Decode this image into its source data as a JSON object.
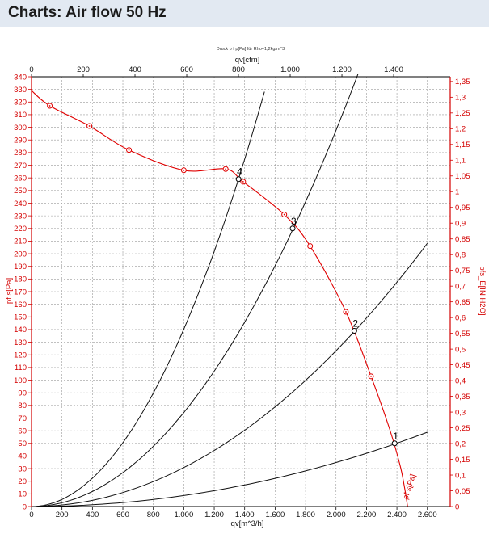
{
  "header": {
    "title": "Charts: Air flow 50 Hz"
  },
  "chart_data": {
    "type": "line",
    "title": "Druck p f ρ[Pa] für Rho=1,2kg/m^3",
    "xlabel": "qv[m^3/h]",
    "x2label": "qv[cfm]",
    "ylabel": "pf s[Pa]",
    "y2label": "pfs_E[IN H2O]",
    "xlim": [
      0,
      2750
    ],
    "ylim": [
      0,
      340
    ],
    "x2lim": [
      0,
      1618.6
    ],
    "y2lim": [
      0,
      1.365
    ],
    "x_ticks": [
      0,
      200,
      400,
      600,
      800,
      1000,
      1200,
      1400,
      1600,
      1800,
      2000,
      2200,
      2400,
      2600
    ],
    "x_tick_labels": [
      "0",
      "200",
      "400",
      "600",
      "800",
      "1.000",
      "1.200",
      "1.400",
      "1.600",
      "1.800",
      "2.000",
      "2.200",
      "2.400",
      "2.600"
    ],
    "x2_ticks": [
      0,
      200,
      400,
      600,
      800,
      1000,
      1200,
      1400
    ],
    "x2_tick_labels": [
      "0",
      "200",
      "400",
      "600",
      "800",
      "1.000",
      "1.200",
      "1.400"
    ],
    "y_ticks": [
      0,
      10,
      20,
      30,
      40,
      50,
      60,
      70,
      80,
      90,
      100,
      110,
      120,
      130,
      140,
      150,
      160,
      170,
      180,
      190,
      200,
      210,
      220,
      230,
      240,
      250,
      260,
      270,
      280,
      290,
      300,
      310,
      320,
      330,
      340
    ],
    "y_tick_labels": [
      "0",
      "10",
      "20",
      "30",
      "40",
      "50",
      "60",
      "70",
      "80",
      "90",
      "100",
      "110",
      "120",
      "130",
      "140",
      "150",
      "160",
      "170",
      "180",
      "190",
      "200",
      "210",
      "220",
      "230",
      "240",
      "250",
      "260",
      "270",
      "280",
      "290",
      "300",
      "310",
      "320",
      "330",
      "340"
    ],
    "y2_ticks": [
      0,
      0.05,
      0.1,
      0.15,
      0.2,
      0.25,
      0.3,
      0.35,
      0.4,
      0.45,
      0.5,
      0.55,
      0.6,
      0.65,
      0.7,
      0.75,
      0.8,
      0.85,
      0.9,
      0.95,
      1.0,
      1.05,
      1.1,
      1.15,
      1.2,
      1.25,
      1.3,
      1.35
    ],
    "y2_tick_labels": [
      "0",
      "0,05",
      "0,1",
      "0,15",
      "0,2",
      "0,25",
      "0,3",
      "0,35",
      "0,4",
      "0,45",
      "0,5",
      "0,55",
      "0,6",
      "0,65",
      "0,7",
      "0,75",
      "0,8",
      "0,85",
      "0,9",
      "0,95",
      "1",
      "1,05",
      "1,1",
      "1,15",
      "1,2",
      "1,25",
      "1,3",
      "1,35"
    ],
    "grid": true,
    "fan_curve": {
      "name": "pf s[Pa]",
      "color": "#e00000",
      "x": [
        0,
        120,
        380,
        640,
        1000,
        1275,
        1390,
        1660,
        1830,
        2065,
        2230,
        2350,
        2420,
        2450,
        2470
      ],
      "y": [
        329,
        317,
        301,
        282,
        266,
        267,
        257,
        231,
        206,
        154,
        103,
        62,
        33,
        15,
        0
      ],
      "markers_x": [
        120,
        380,
        640,
        1000,
        1275,
        1390,
        1660,
        1830,
        2065,
        2230
      ],
      "markers_y": [
        317,
        301,
        282,
        266,
        267,
        257,
        231,
        206,
        154,
        103
      ]
    },
    "system_curves": [
      {
        "name": "1",
        "x": [
          0,
          2600
        ],
        "coef": 8.7e-06
      },
      {
        "name": "2",
        "x": [
          0,
          2600
        ],
        "coef": 3.08e-05
      },
      {
        "name": "3",
        "x": [
          0,
          2145
        ],
        "coef": 7.44e-05
      },
      {
        "name": "4",
        "x": [
          0,
          1530
        ],
        "coef": 0.0001402
      }
    ],
    "operating_points": [
      {
        "label": "1",
        "x": 2385,
        "y": 50
      },
      {
        "label": "2",
        "x": 2120,
        "y": 139
      },
      {
        "label": "3",
        "x": 1715,
        "y": 220
      },
      {
        "label": "4",
        "x": 1360,
        "y": 259
      }
    ],
    "curve_label": "pf s[Pa]"
  }
}
